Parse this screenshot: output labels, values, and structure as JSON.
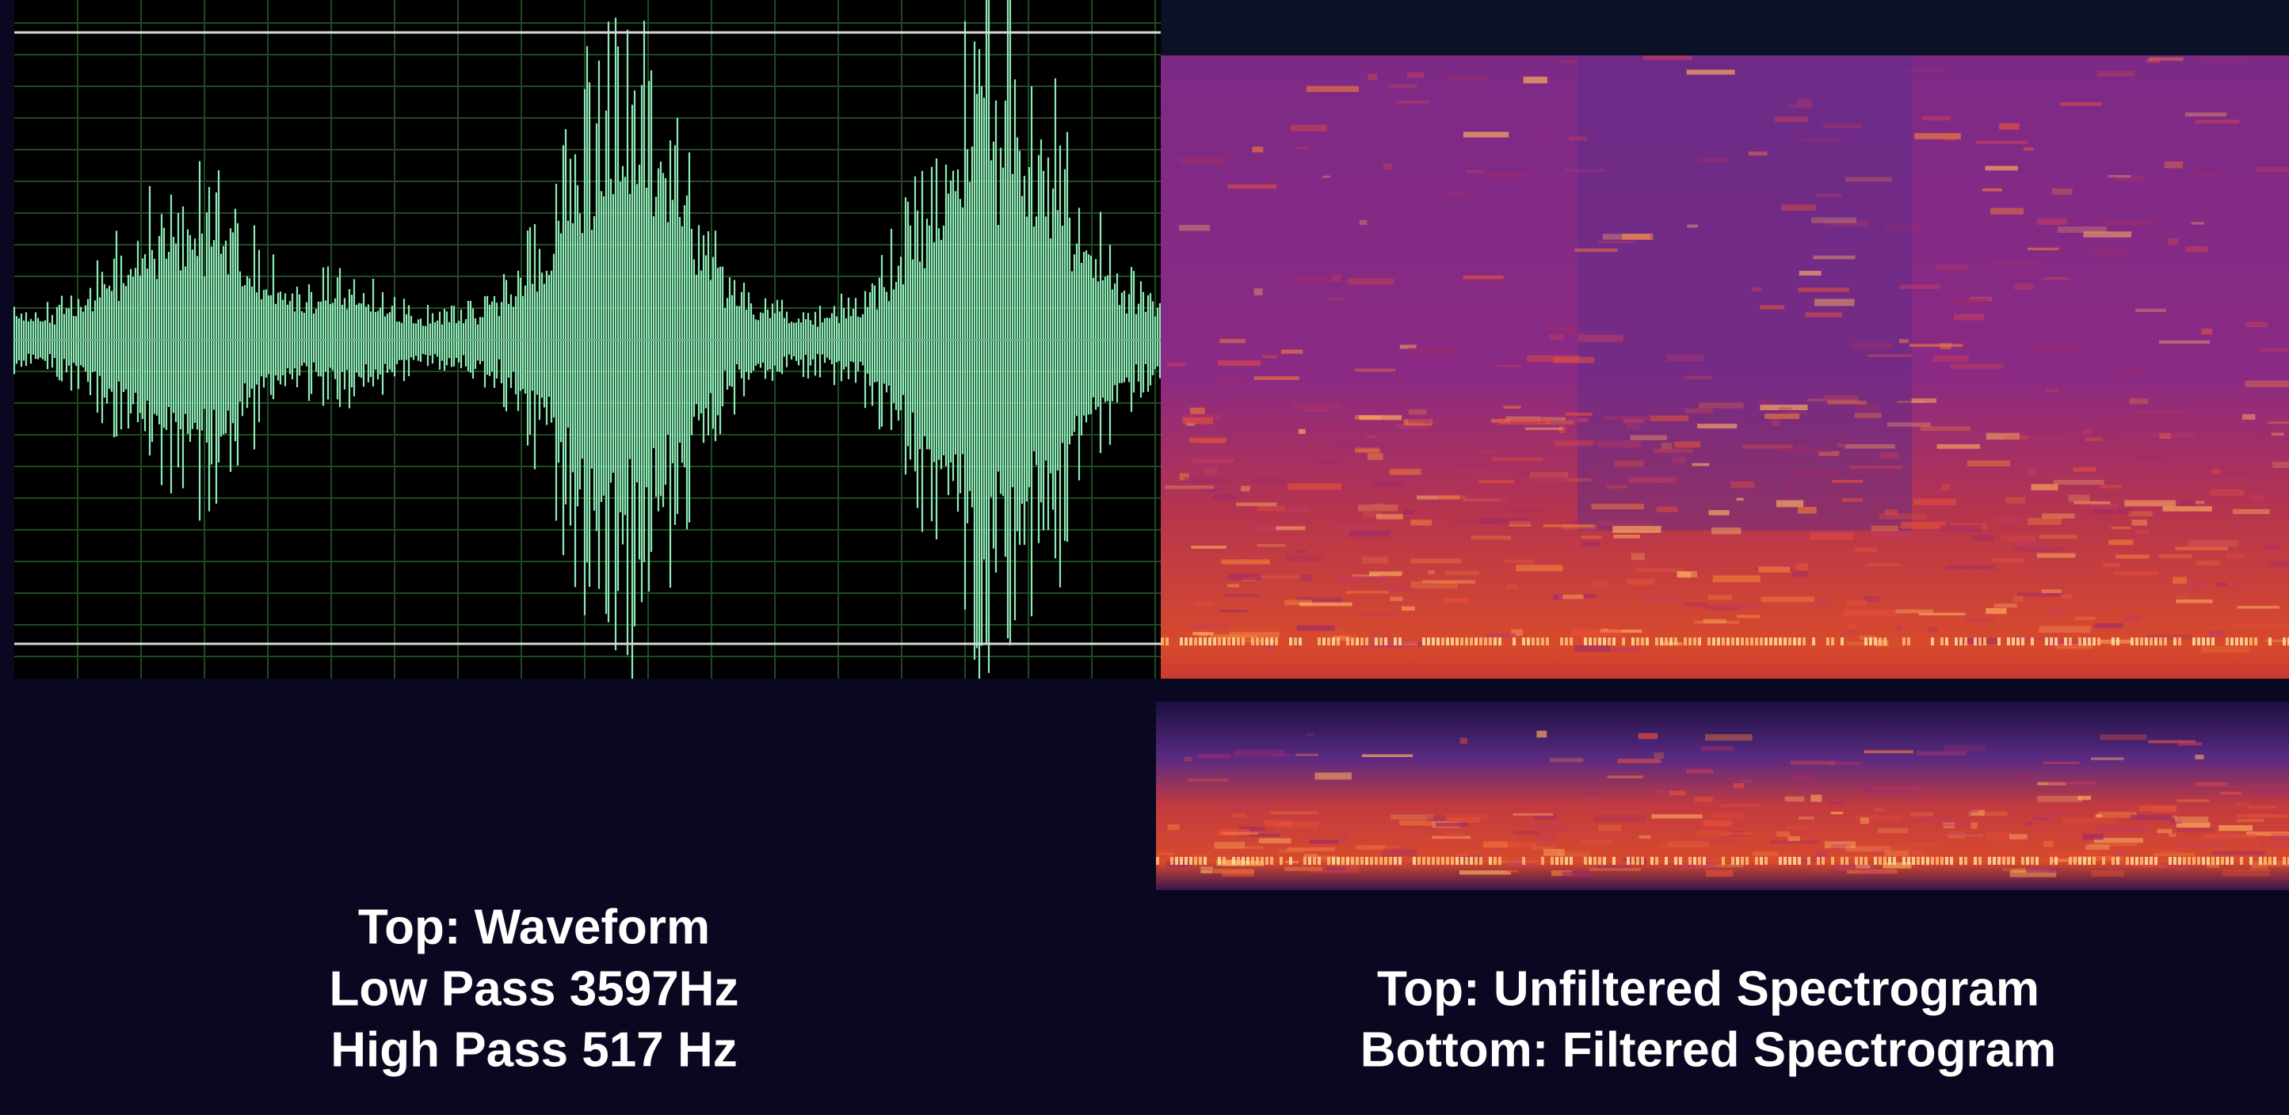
{
  "waveform_caption": {
    "lines": [
      "Top: Waveform",
      "Low Pass 3597Hz",
      "High Pass 517 Hz"
    ]
  },
  "spectrogram_caption": {
    "lines": [
      "Top: Unfiltered Spectrogram",
      "Bottom: Filtered Spectrogram"
    ]
  }
}
